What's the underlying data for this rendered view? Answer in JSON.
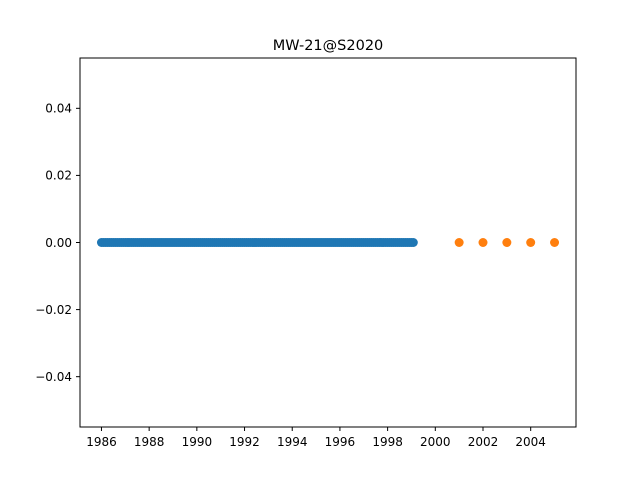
{
  "chart_data": {
    "type": "scatter",
    "title": "MW-21@S2020",
    "xlabel": "",
    "ylabel": "",
    "xlim": [
      1985.1,
      2005.9
    ],
    "ylim": [
      -0.055,
      0.055
    ],
    "grid": false,
    "legend": "none",
    "x_ticks": [
      "1986",
      "1988",
      "1990",
      "1992",
      "1994",
      "1996",
      "1998",
      "2000",
      "2002",
      "2004"
    ],
    "y_ticks": [
      "−0.04",
      "−0.02",
      "0.00",
      "0.02",
      "0.04"
    ],
    "series": [
      {
        "color": "#1f77b4",
        "x_start": 1986.0,
        "x_end": 1999.1,
        "x_step": 0.0833,
        "y": 0.0
      },
      {
        "color": "#ff7f0e",
        "x": [
          2001,
          2002,
          2003,
          2004,
          2005
        ],
        "y": [
          0.0,
          0.0,
          0.0,
          0.0,
          0.0
        ]
      }
    ]
  }
}
